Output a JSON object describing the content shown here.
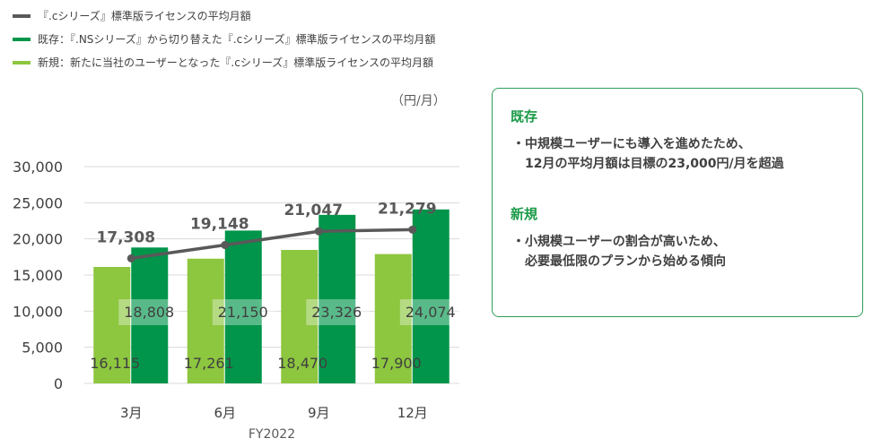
{
  "legend": [
    {
      "label": "『.cシリーズ』標準版ライセンスの平均月額",
      "color": "#595959"
    },
    {
      "label": "既存：『.NSシリーズ』から切り替えた『.cシリーズ』標準版ライセンスの平均月額",
      "color": "#00954a"
    },
    {
      "label": "新規：新たに当社のユーザーとなった『.cシリーズ』標準版ライセンスの平均月額",
      "color": "#8dc63f"
    }
  ],
  "unit_label": "（円/月）",
  "chart_data": {
    "type": "bar",
    "categories": [
      "3月",
      "6月",
      "9月",
      "12月"
    ],
    "xlabel": "FY2022",
    "ylim": [
      0,
      30000
    ],
    "yticks": [
      0,
      5000,
      10000,
      15000,
      20000,
      25000,
      30000
    ],
    "ytick_labels": [
      "0",
      "5,000",
      "10,000",
      "15,000",
      "20,000",
      "25,000",
      "30,000"
    ],
    "grid": true,
    "series": [
      {
        "name": "新規：新たに当社のユーザーとなった『.cシリーズ』標準版ライセンスの平均月額",
        "type": "bar",
        "color": "#8dc63f",
        "values": [
          16115,
          17261,
          18470,
          17900
        ],
        "labels": [
          "16,115",
          "17,261",
          "18,470",
          "17,900"
        ]
      },
      {
        "name": "既存：『.NSシリーズ』から切り替えた『.cシリーズ』標準版ライセンスの平均月額",
        "type": "bar",
        "color": "#00954a",
        "values": [
          18808,
          21150,
          23326,
          24074
        ],
        "labels": [
          "18,808",
          "21,150",
          "23,326",
          "24,074"
        ]
      },
      {
        "name": "『.cシリーズ』標準版ライセンスの平均月額",
        "type": "line",
        "color": "#595959",
        "values": [
          17308,
          19148,
          21047,
          21279
        ],
        "labels": [
          "17,308",
          "19,148",
          "21,047",
          "21,279"
        ]
      }
    ]
  },
  "notes": {
    "existing": {
      "heading": "既存",
      "lines": [
        "・中規模ユーザーにも導入を進めたため、",
        "　12月の平均月額は目標の23,000円/月を超過"
      ]
    },
    "new": {
      "heading": "新規",
      "lines": [
        "・小規模ユーザーの割合が高いため、",
        "　必要最低限のプランから始める傾向"
      ]
    }
  }
}
